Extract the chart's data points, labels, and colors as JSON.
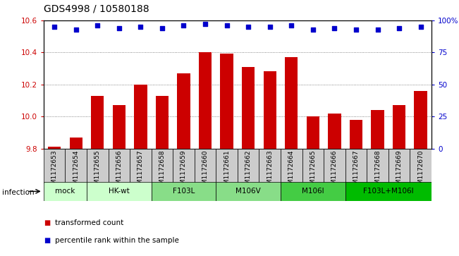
{
  "title": "GDS4998 / 10580188",
  "samples": [
    "GSM1172653",
    "GSM1172654",
    "GSM1172655",
    "GSM1172656",
    "GSM1172657",
    "GSM1172658",
    "GSM1172659",
    "GSM1172660",
    "GSM1172661",
    "GSM1172662",
    "GSM1172663",
    "GSM1172664",
    "GSM1172665",
    "GSM1172666",
    "GSM1172667",
    "GSM1172668",
    "GSM1172669",
    "GSM1172670"
  ],
  "bar_values": [
    9.81,
    9.87,
    10.13,
    10.07,
    10.2,
    10.13,
    10.27,
    10.4,
    10.395,
    10.31,
    10.285,
    10.37,
    10.0,
    10.02,
    9.98,
    10.04,
    10.07,
    10.16
  ],
  "percentile_values": [
    95,
    93,
    96,
    94,
    95,
    94,
    96,
    97,
    96,
    95,
    95,
    96,
    93,
    94,
    93,
    93,
    94,
    95
  ],
  "ylim_left": [
    9.8,
    10.6
  ],
  "ylim_right": [
    0,
    100
  ],
  "yticks_left": [
    9.8,
    10.0,
    10.2,
    10.4,
    10.6
  ],
  "yticks_right": [
    0,
    25,
    50,
    75,
    100
  ],
  "ytick_labels_right": [
    "0",
    "25",
    "50",
    "75",
    "100%"
  ],
  "bar_color": "#cc0000",
  "dot_color": "#0000cc",
  "sample_box_color": "#cccccc",
  "groups": [
    {
      "label": "mock",
      "start": 0,
      "end": 2,
      "color": "#ccffcc"
    },
    {
      "label": "HK-wt",
      "start": 2,
      "end": 5,
      "color": "#ccffcc"
    },
    {
      "label": "F103L",
      "start": 5,
      "end": 8,
      "color": "#88dd88"
    },
    {
      "label": "M106V",
      "start": 8,
      "end": 11,
      "color": "#88dd88"
    },
    {
      "label": "M106I",
      "start": 11,
      "end": 14,
      "color": "#44cc44"
    },
    {
      "label": "F103L+M106I",
      "start": 14,
      "end": 18,
      "color": "#00bb00"
    }
  ],
  "infection_label": "infection",
  "legend_bar_label": "transformed count",
  "legend_dot_label": "percentile rank within the sample",
  "background_color": "#ffffff",
  "grid_color": "#666666",
  "title_fontsize": 10,
  "tick_fontsize": 7.5,
  "sample_fontsize": 6.5
}
